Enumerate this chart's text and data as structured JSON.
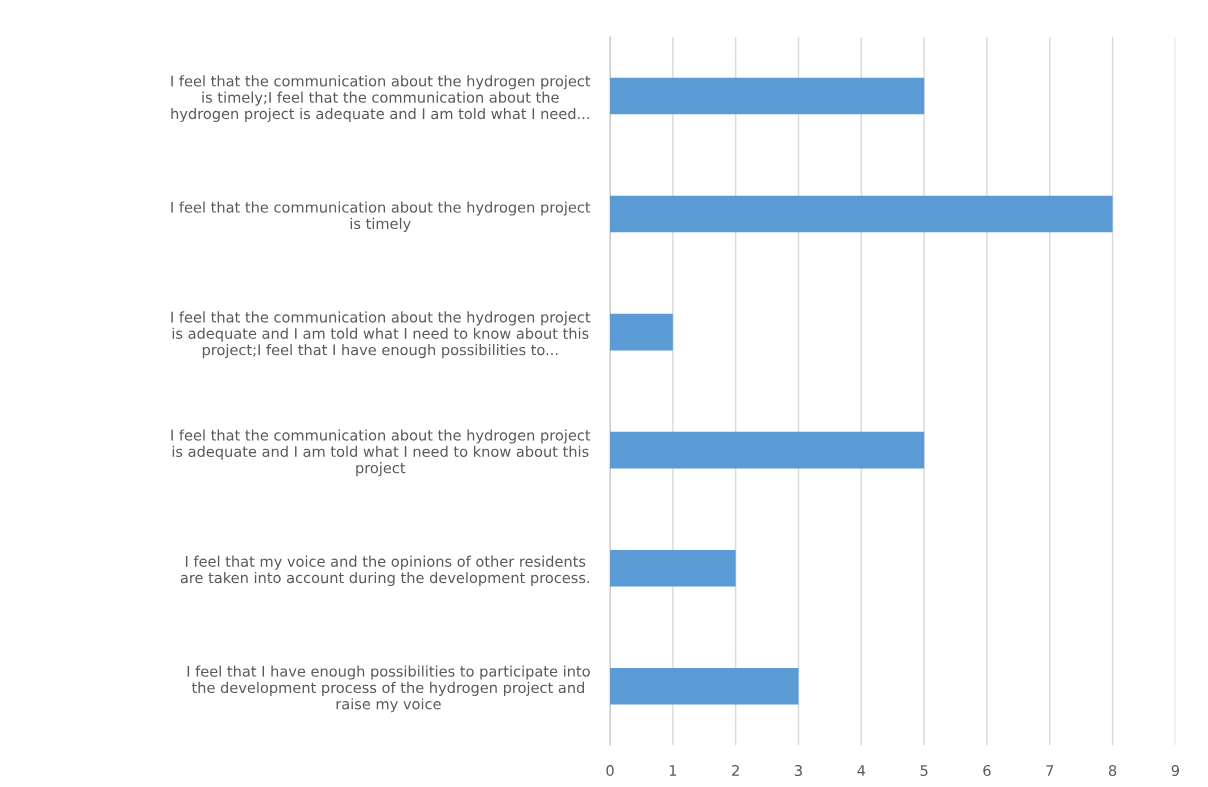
{
  "chart_data": {
    "type": "bar",
    "orientation": "horizontal",
    "categories": [
      "I feel that the communication about the hydrogen project\nis timely;I feel that the communication about the\nhydrogen project is adequate and I am told what I need...",
      "I feel that the communication about the hydrogen project\nis timely",
      "I feel that the communication about the hydrogen project\nis adequate and I am told what I need to know about this\nproject;I feel that I have enough possibilities to...",
      "I feel that the communication about the hydrogen project\nis adequate and I am told what I need to know about this\nproject",
      "I feel that my voice and the opinions of other residents\nare taken into account during the development process.",
      "I feel that I have enough possibilities to participate into\nthe development process of the hydrogen project and\nraise my voice"
    ],
    "values": [
      5,
      8,
      1,
      5,
      2,
      3
    ],
    "color": "#5b9bd5",
    "xlim": [
      0,
      9
    ],
    "xticks": [
      0,
      1,
      2,
      3,
      4,
      5,
      6,
      7,
      8,
      9
    ],
    "grid": "x",
    "legend": false
  }
}
